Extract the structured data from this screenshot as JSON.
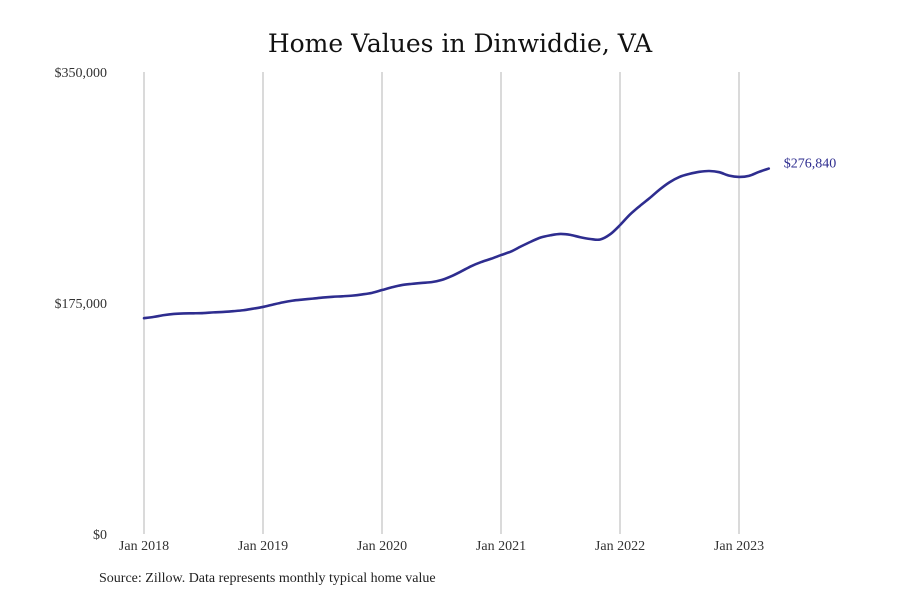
{
  "chart_data": {
    "type": "line",
    "title": "Home Values in Dinwiddie, VA",
    "xlabel": "",
    "ylabel": "",
    "ylim": [
      0,
      350000
    ],
    "y_ticks": [
      {
        "value": 0,
        "label": "$0"
      },
      {
        "value": 175000,
        "label": "$175,000"
      },
      {
        "value": 350000,
        "label": "$350,000"
      }
    ],
    "x_ticks": [
      {
        "value": "2018-01",
        "label": "Jan 2018"
      },
      {
        "value": "2019-01",
        "label": "Jan 2019"
      },
      {
        "value": "2020-01",
        "label": "Jan 2020"
      },
      {
        "value": "2021-01",
        "label": "Jan 2021"
      },
      {
        "value": "2022-01",
        "label": "Jan 2022"
      },
      {
        "value": "2023-01",
        "label": "Jan 2023"
      }
    ],
    "grid": {
      "vertical": true,
      "horizontal": false
    },
    "series": [
      {
        "color": "#2e2d8f",
        "end_label": "$276,840",
        "points": [
          [
            "2018-01",
            163500
          ],
          [
            "2018-02",
            164500
          ],
          [
            "2018-03",
            165800
          ],
          [
            "2018-04",
            166700
          ],
          [
            "2018-05",
            167100
          ],
          [
            "2018-06",
            167200
          ],
          [
            "2018-07",
            167400
          ],
          [
            "2018-08",
            167900
          ],
          [
            "2018-09",
            168200
          ],
          [
            "2018-10",
            168800
          ],
          [
            "2018-11",
            169500
          ],
          [
            "2018-12",
            170700
          ],
          [
            "2019-01",
            172000
          ],
          [
            "2019-02",
            173800
          ],
          [
            "2019-03",
            175500
          ],
          [
            "2019-04",
            176800
          ],
          [
            "2019-05",
            177600
          ],
          [
            "2019-06",
            178300
          ],
          [
            "2019-07",
            179100
          ],
          [
            "2019-08",
            179700
          ],
          [
            "2019-09",
            180100
          ],
          [
            "2019-10",
            180600
          ],
          [
            "2019-11",
            181500
          ],
          [
            "2019-12",
            182700
          ],
          [
            "2020-01",
            184800
          ],
          [
            "2020-02",
            186900
          ],
          [
            "2020-03",
            188600
          ],
          [
            "2020-04",
            189500
          ],
          [
            "2020-05",
            190200
          ],
          [
            "2020-06",
            190800
          ],
          [
            "2020-07",
            192400
          ],
          [
            "2020-08",
            195300
          ],
          [
            "2020-09",
            199000
          ],
          [
            "2020-10",
            202900
          ],
          [
            "2020-11",
            206000
          ],
          [
            "2020-12",
            208500
          ],
          [
            "2021-01",
            211300
          ],
          [
            "2021-02",
            214000
          ],
          [
            "2021-03",
            217800
          ],
          [
            "2021-04",
            221400
          ],
          [
            "2021-05",
            224600
          ],
          [
            "2021-06",
            226300
          ],
          [
            "2021-07",
            227300
          ],
          [
            "2021-08",
            226600
          ],
          [
            "2021-09",
            224800
          ],
          [
            "2021-10",
            223500
          ],
          [
            "2021-11",
            223100
          ],
          [
            "2021-12",
            227000
          ],
          [
            "2022-01",
            234000
          ],
          [
            "2022-02",
            242000
          ],
          [
            "2022-03",
            248500
          ],
          [
            "2022-04",
            254500
          ],
          [
            "2022-05",
            261000
          ],
          [
            "2022-06",
            266500
          ],
          [
            "2022-07",
            270500
          ],
          [
            "2022-08",
            272800
          ],
          [
            "2022-09",
            274400
          ],
          [
            "2022-10",
            275000
          ],
          [
            "2022-11",
            274100
          ],
          [
            "2022-12",
            271500
          ],
          [
            "2023-01",
            270500
          ],
          [
            "2023-02",
            271300
          ],
          [
            "2023-03",
            274300
          ],
          [
            "2023-04",
            276840
          ]
        ]
      }
    ]
  },
  "footer": {
    "source": "Source: Zillow. Data represents monthly typical home value"
  }
}
